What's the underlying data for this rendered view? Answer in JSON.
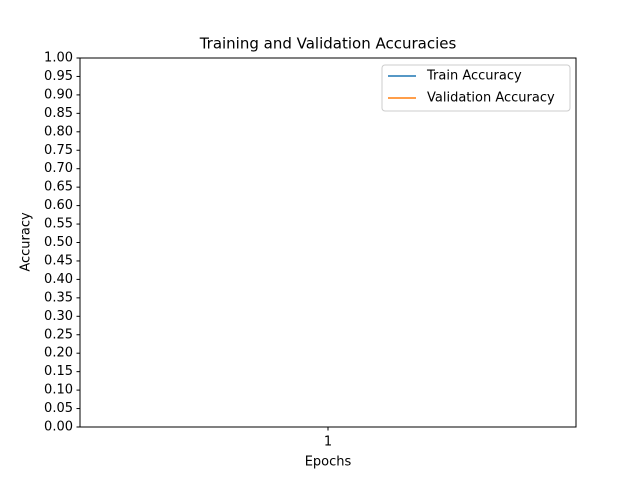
{
  "chart_data": {
    "type": "line",
    "title": "Training and Validation Accuracies",
    "xlabel": "Epochs",
    "ylabel": "Accuracy",
    "x": [
      1
    ],
    "series": [
      {
        "name": "Train Accuracy",
        "color": "#1f77b4",
        "values": [
          null
        ]
      },
      {
        "name": "Validation Accuracy",
        "color": "#ff7f0e",
        "values": [
          null
        ]
      }
    ],
    "xlim": [
      0.95,
      1.05
    ],
    "xticks": [
      1
    ],
    "ylim": [
      0,
      1
    ],
    "yticks": [
      {
        "value": 0,
        "label": "0.00"
      },
      0.05,
      {
        "value": 0.1,
        "label": "0.10"
      },
      0.15,
      {
        "value": 0.2,
        "label": "0.20"
      },
      0.25,
      {
        "value": 0.3,
        "label": "0.30"
      },
      0.35,
      {
        "value": 0.4,
        "label": "0.40"
      },
      0.45,
      {
        "value": 0.5,
        "label": "0.50"
      },
      0.55,
      {
        "value": 0.6,
        "label": "0.60"
      },
      0.65,
      {
        "value": 0.7,
        "label": "0.70"
      },
      0.75,
      {
        "value": 0.8,
        "label": "0.80"
      },
      0.85,
      {
        "value": 0.9,
        "label": "0.90"
      },
      0.95,
      {
        "value": 1,
        "label": "1.00"
      }
    ],
    "legend": "upper right"
  }
}
